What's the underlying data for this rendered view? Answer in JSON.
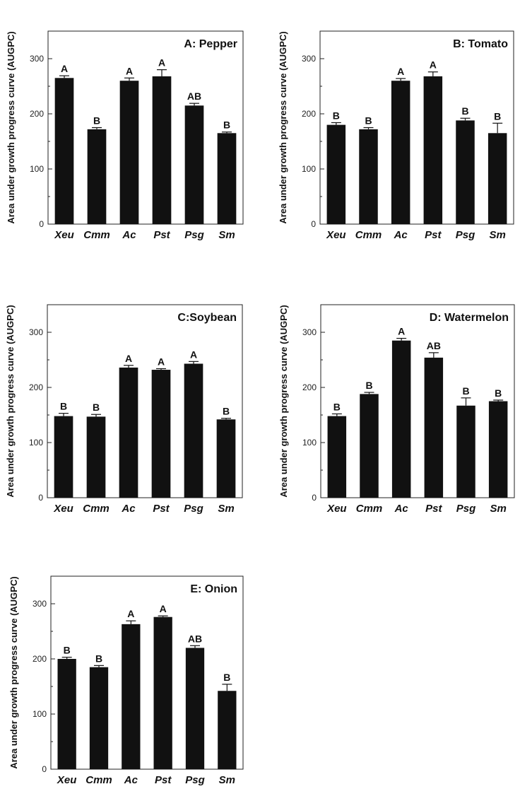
{
  "chart_data": [
    {
      "type": "bar",
      "title": "A: Pepper",
      "ylabel": "Area under growth progress curve (AUGPC)",
      "categories": [
        "Xeu",
        "Cmm",
        "Ac",
        "Pst",
        "Psg",
        "Sm"
      ],
      "values": [
        265,
        172,
        260,
        268,
        215,
        165
      ],
      "errors": [
        4,
        3,
        5,
        12,
        4,
        2
      ],
      "letters": [
        "A",
        "B",
        "A",
        "A",
        "AB",
        "B"
      ],
      "ylim": [
        0,
        350
      ],
      "yticks": [
        0,
        100,
        200,
        300
      ],
      "bar_color": "#111111"
    },
    {
      "type": "bar",
      "title": "B: Tomato",
      "ylabel": "Area under growth progress curve (AUGPC)",
      "categories": [
        "Xeu",
        "Cmm",
        "Ac",
        "Pst",
        "Psg",
        "Sm"
      ],
      "values": [
        180,
        172,
        260,
        268,
        188,
        165
      ],
      "errors": [
        4,
        3,
        4,
        8,
        4,
        18
      ],
      "letters": [
        "B",
        "B",
        "A",
        "A",
        "B",
        "B"
      ],
      "ylim": [
        0,
        350
      ],
      "yticks": [
        0,
        100,
        200,
        300
      ],
      "bar_color": "#111111"
    },
    {
      "type": "bar",
      "title": "C:Soybean",
      "ylabel": "Area under growth progress curve (AUGPC)",
      "categories": [
        "Xeu",
        "Cmm",
        "Ac",
        "Pst",
        "Psg",
        "Sm"
      ],
      "values": [
        148,
        147,
        236,
        232,
        243,
        142
      ],
      "errors": [
        5,
        4,
        4,
        2,
        4,
        2
      ],
      "letters": [
        "B",
        "B",
        "A",
        "A",
        "A",
        "B"
      ],
      "ylim": [
        0,
        350
      ],
      "yticks": [
        0,
        100,
        200,
        300
      ],
      "bar_color": "#111111"
    },
    {
      "type": "bar",
      "title": "D: Watermelon",
      "ylabel": "Area under growth progress curve (AUGPC)",
      "categories": [
        "Xeu",
        "Cmm",
        "Ac",
        "Pst",
        "Psg",
        "Sm"
      ],
      "values": [
        148,
        188,
        285,
        254,
        167,
        175
      ],
      "errors": [
        4,
        3,
        4,
        9,
        14,
        2
      ],
      "letters": [
        "B",
        "B",
        "A",
        "AB",
        "B",
        "B"
      ],
      "ylim": [
        0,
        350
      ],
      "yticks": [
        0,
        100,
        200,
        300
      ],
      "bar_color": "#111111"
    },
    {
      "type": "bar",
      "title": "E: Onion",
      "ylabel": "Area under growth progress curve (AUGPC)",
      "categories": [
        "Xeu",
        "Cmm",
        "Ac",
        "Pst",
        "Psg",
        "Sm"
      ],
      "values": [
        200,
        185,
        263,
        276,
        220,
        142
      ],
      "errors": [
        3,
        3,
        6,
        2,
        4,
        12
      ],
      "letters": [
        "B",
        "B",
        "A",
        "A",
        "AB",
        "B"
      ],
      "ylim": [
        0,
        350
      ],
      "yticks": [
        0,
        100,
        200,
        300
      ],
      "bar_color": "#111111"
    }
  ]
}
